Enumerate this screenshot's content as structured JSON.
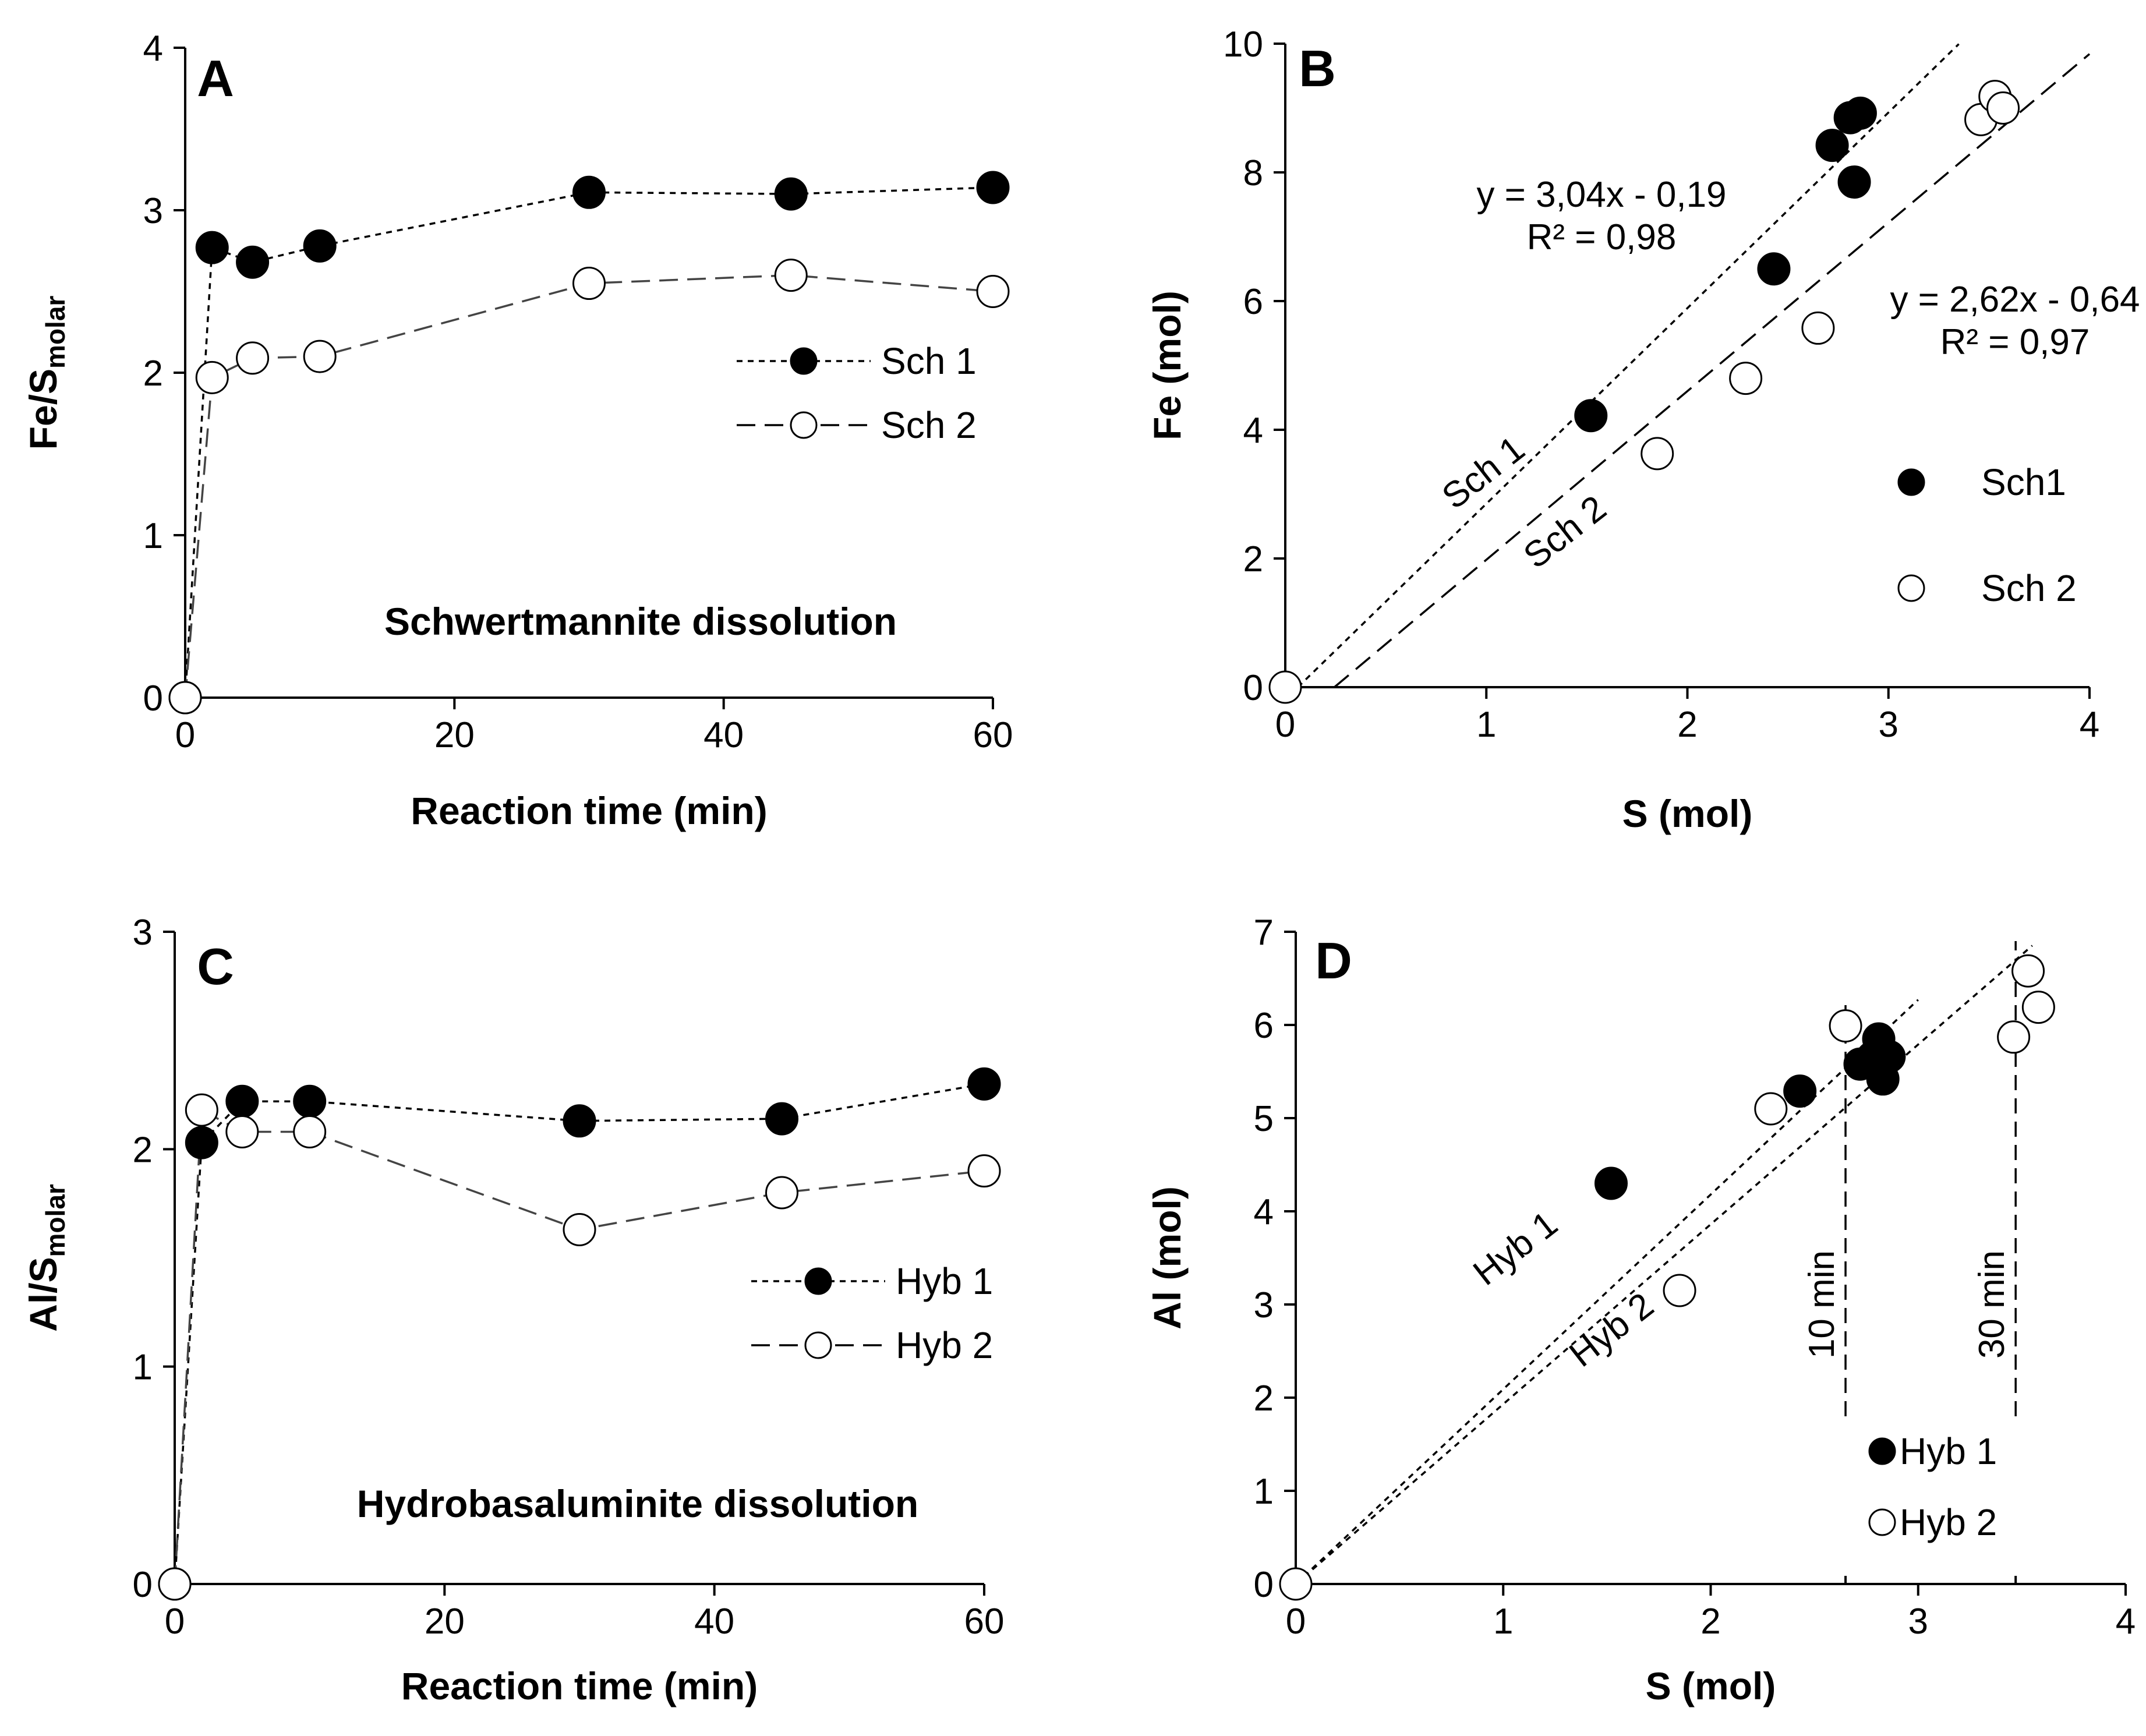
{
  "chart_data": [
    {
      "type": "line",
      "panel": "A",
      "caption": "Schwertmannite dissolution",
      "xlabel": "Reaction time (min)",
      "ylabel_main": "Fe/S",
      "ylabel_sub": "molar",
      "xlim": [
        0,
        60
      ],
      "ylim": [
        0,
        4
      ],
      "xticks": [
        0,
        20,
        40,
        60
      ],
      "yticks": [
        0,
        1,
        2,
        3,
        4
      ],
      "legend_position": "right-middle",
      "series": [
        {
          "name": "Sch 1",
          "marker": "filled",
          "line": "dotted",
          "x": [
            0,
            2,
            5,
            10,
            30,
            45,
            60
          ],
          "y": [
            0,
            2.77,
            2.68,
            2.78,
            3.11,
            3.1,
            3.14
          ]
        },
        {
          "name": "Sch 2",
          "marker": "open",
          "line": "dashed",
          "x": [
            0,
            2,
            5,
            10,
            30,
            45,
            60
          ],
          "y": [
            0,
            1.97,
            2.09,
            2.1,
            2.55,
            2.6,
            2.5
          ]
        }
      ]
    },
    {
      "type": "scatter",
      "panel": "B",
      "xlabel": "S (mol)",
      "ylabel": "Fe (mol)",
      "xlim": [
        0,
        4
      ],
      "ylim": [
        0,
        10
      ],
      "xticks": [
        0,
        1,
        2,
        3,
        4
      ],
      "yticks": [
        0,
        2,
        4,
        6,
        8,
        10
      ],
      "legend_position": "right-lower",
      "series": [
        {
          "name": "Sch1",
          "marker": "filled",
          "x": [
            1.52,
            2.43,
            2.72,
            2.81,
            2.86,
            2.83
          ],
          "y": [
            4.22,
            6.5,
            8.42,
            8.85,
            8.92,
            7.85
          ]
        },
        {
          "name": "Sch 2",
          "marker": "open",
          "x": [
            0,
            1.85,
            2.29,
            2.65,
            3.46,
            3.53,
            3.57
          ],
          "y": [
            0,
            3.63,
            4.8,
            5.58,
            8.82,
            9.18,
            9.0
          ]
        }
      ],
      "fits": [
        {
          "name": "Sch 1",
          "label": "Sch 1",
          "line": "dotted",
          "slope": 3.04,
          "intercept": -0.19,
          "equation": "y = 3,04x - 0,19",
          "r2": "R² = 0,98",
          "x_range": [
            0,
            3.35
          ]
        },
        {
          "name": "Sch 2",
          "label": "Sch 2",
          "line": "dashed",
          "slope": 2.62,
          "intercept": -0.64,
          "equation": "y = 2,62x - 0,64",
          "r2": "R² = 0,97",
          "x_range": [
            0.24,
            4
          ]
        }
      ]
    },
    {
      "type": "line",
      "panel": "C",
      "caption": "Hydrobasaluminite dissolution",
      "xlabel": "Reaction time (min)",
      "ylabel_main": "Al/S",
      "ylabel_sub": "molar",
      "xlim": [
        0,
        60
      ],
      "ylim": [
        0,
        3
      ],
      "xticks": [
        0,
        20,
        40,
        60
      ],
      "yticks": [
        0,
        1,
        2,
        3
      ],
      "legend_position": "right-middle",
      "series": [
        {
          "name": "Hyb 1",
          "marker": "filled",
          "line": "dotted",
          "x": [
            0,
            2,
            5,
            10,
            30,
            45,
            60
          ],
          "y": [
            0,
            2.03,
            2.22,
            2.22,
            2.13,
            2.14,
            2.3
          ]
        },
        {
          "name": "Hyb 2",
          "marker": "open",
          "line": "dashed",
          "x": [
            0,
            2,
            5,
            10,
            30,
            45,
            60
          ],
          "y": [
            0,
            2.18,
            2.08,
            2.08,
            1.63,
            1.8,
            1.9
          ]
        }
      ]
    },
    {
      "type": "scatter",
      "panel": "D",
      "xlabel": "S (mol)",
      "ylabel": "Al (mol)",
      "xlim": [
        0,
        4
      ],
      "ylim": [
        0,
        7
      ],
      "xticks": [
        0,
        1,
        2,
        3,
        4
      ],
      "yticks": [
        0,
        1,
        2,
        3,
        4,
        5,
        6,
        7
      ],
      "legend_position": "bottom-right",
      "series": [
        {
          "name": "Hyb 1",
          "marker": "filled",
          "x": [
            1.52,
            2.43,
            2.72,
            2.78,
            2.81,
            2.86,
            2.83
          ],
          "y": [
            4.3,
            5.29,
            5.58,
            5.65,
            5.85,
            5.66,
            5.42
          ]
        },
        {
          "name": "Hyb 2",
          "marker": "open",
          "x": [
            0,
            1.85,
            2.29,
            2.65,
            3.46,
            3.53,
            3.58
          ],
          "y": [
            0,
            3.15,
            5.1,
            5.99,
            5.87,
            6.58,
            6.19
          ]
        }
      ],
      "fits": [
        {
          "name": "Hyb 1",
          "label": "Hyb 1",
          "line": "dotted",
          "slope": 2.09,
          "intercept": 0,
          "x_range": [
            0,
            3.0
          ]
        },
        {
          "name": "Hyb 2",
          "label": "Hyb 2",
          "line": "dotted",
          "slope": 1.93,
          "intercept": 0,
          "x_range": [
            0,
            3.55
          ]
        }
      ],
      "vlines": [
        {
          "x": 2.65,
          "label": "10 min",
          "y_range": [
            1.8,
            6.3
          ]
        },
        {
          "x": 3.47,
          "label": "30 min",
          "y_range": [
            1.8,
            6.9
          ]
        }
      ]
    }
  ]
}
